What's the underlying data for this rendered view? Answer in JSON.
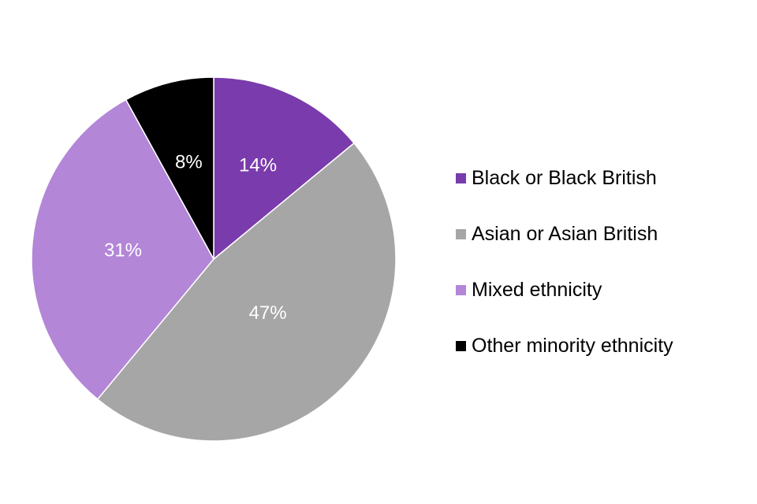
{
  "chart_data": {
    "type": "pie",
    "categories": [
      "Black or Black British",
      "Asian or Asian British",
      "Mixed ethnicity",
      "Other minority ethnicity"
    ],
    "values": [
      14,
      47,
      31,
      8
    ],
    "data_labels": [
      "14%",
      "47%",
      "31%",
      "8%"
    ],
    "colors": [
      "#7a3bac",
      "#a6a6a6",
      "#b386d8",
      "#000000"
    ],
    "start_angle_deg": 0,
    "direction": "clockwise",
    "legend_position": "right"
  }
}
